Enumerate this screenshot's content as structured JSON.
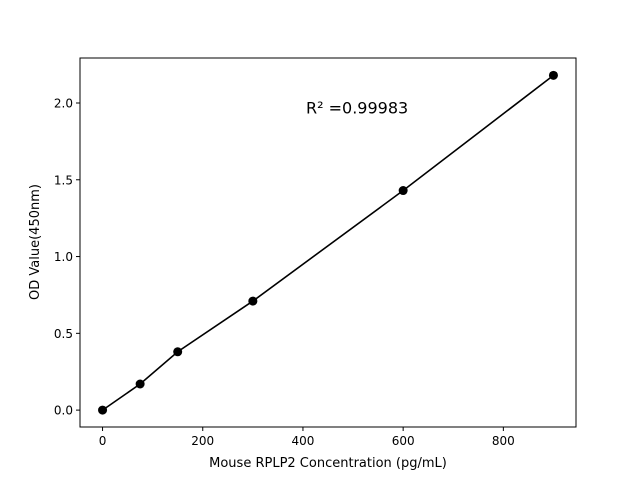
{
  "chart_data": {
    "type": "line",
    "title": "",
    "xlabel": "Mouse RPLP2 Concentration (pg/mL)",
    "ylabel": "OD Value(450nm)",
    "xlim": [
      -45,
      945
    ],
    "ylim": [
      -0.11,
      2.293
    ],
    "xticks": [
      0,
      200,
      400,
      600,
      800
    ],
    "xtick_labels": [
      "0",
      "200",
      "400",
      "600",
      "800"
    ],
    "yticks": [
      0.0,
      0.5,
      1.0,
      1.5,
      2.0
    ],
    "ytick_labels": [
      "0.0",
      "0.5",
      "1.0",
      "1.5",
      "2.0"
    ],
    "grid": false,
    "series": [
      {
        "x": [
          0,
          75,
          150,
          300,
          600,
          900
        ],
        "y": [
          0.0,
          0.17,
          0.38,
          0.71,
          1.43,
          2.18
        ],
        "color": "#000000",
        "marker": "circle"
      }
    ],
    "annotation": {
      "text": "R² =0.99983",
      "x": 450,
      "y": 1.97
    }
  }
}
